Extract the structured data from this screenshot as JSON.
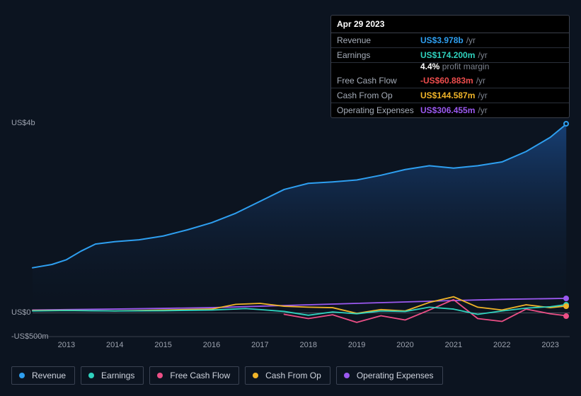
{
  "chart": {
    "type": "line",
    "background_color": "#0c1420",
    "plot_area_gradient_top": "rgba(20,60,110,0.9)",
    "plot_area_gradient_bottom": "rgba(10,20,40,0.1)",
    "axis_color": "#4a505c",
    "label_color": "#9ca2ae",
    "label_fontsize": 11,
    "y": {
      "min_value_usd": -500000000,
      "max_value_usd": 4000000000,
      "ticks": [
        {
          "label": "US$4b",
          "value": 4000000000
        },
        {
          "label": "US$0",
          "value": 0
        },
        {
          "label": "-US$500m",
          "value": -500000000
        }
      ]
    },
    "x": {
      "min_year": 2012.3,
      "max_year": 2023.4,
      "ticks": [
        {
          "label": "2013",
          "year": 2013
        },
        {
          "label": "2014",
          "year": 2014
        },
        {
          "label": "2015",
          "year": 2015
        },
        {
          "label": "2016",
          "year": 2016
        },
        {
          "label": "2017",
          "year": 2017
        },
        {
          "label": "2018",
          "year": 2018
        },
        {
          "label": "2019",
          "year": 2019
        },
        {
          "label": "2020",
          "year": 2020
        },
        {
          "label": "2021",
          "year": 2021
        },
        {
          "label": "2022",
          "year": 2022
        },
        {
          "label": "2023",
          "year": 2023
        }
      ]
    },
    "series": {
      "revenue": {
        "label": "Revenue",
        "color": "#2e9ff0",
        "width": 2,
        "area": true,
        "points": [
          [
            2012.3,
            950
          ],
          [
            2012.7,
            1020
          ],
          [
            2013.0,
            1120
          ],
          [
            2013.3,
            1300
          ],
          [
            2013.6,
            1450
          ],
          [
            2014.0,
            1500
          ],
          [
            2014.5,
            1540
          ],
          [
            2015.0,
            1620
          ],
          [
            2015.5,
            1750
          ],
          [
            2016.0,
            1900
          ],
          [
            2016.5,
            2100
          ],
          [
            2017.0,
            2350
          ],
          [
            2017.5,
            2600
          ],
          [
            2018.0,
            2730
          ],
          [
            2018.5,
            2760
          ],
          [
            2019.0,
            2800
          ],
          [
            2019.5,
            2900
          ],
          [
            2020.0,
            3020
          ],
          [
            2020.5,
            3100
          ],
          [
            2021.0,
            3050
          ],
          [
            2021.5,
            3100
          ],
          [
            2022.0,
            3180
          ],
          [
            2022.5,
            3400
          ],
          [
            2023.0,
            3700
          ],
          [
            2023.33,
            3978
          ]
        ]
      },
      "earnings": {
        "label": "Earnings",
        "color": "#2fd2be",
        "width": 1.8,
        "points": [
          [
            2012.3,
            40
          ],
          [
            2013,
            50
          ],
          [
            2014,
            40
          ],
          [
            2015,
            45
          ],
          [
            2016,
            60
          ],
          [
            2016.7,
            90
          ],
          [
            2017,
            70
          ],
          [
            2017.5,
            30
          ],
          [
            2018,
            -50
          ],
          [
            2018.5,
            20
          ],
          [
            2019,
            -20
          ],
          [
            2019.5,
            40
          ],
          [
            2020,
            30
          ],
          [
            2020.5,
            120
          ],
          [
            2021,
            80
          ],
          [
            2021.5,
            -30
          ],
          [
            2022,
            40
          ],
          [
            2022.5,
            100
          ],
          [
            2023,
            130
          ],
          [
            2023.33,
            174
          ]
        ]
      },
      "fcf": {
        "label": "Free Cash Flow",
        "color": "#ec4f86",
        "width": 1.8,
        "points": [
          [
            2017.5,
            -30
          ],
          [
            2018,
            -120
          ],
          [
            2018.5,
            -40
          ],
          [
            2019,
            -200
          ],
          [
            2019.5,
            -60
          ],
          [
            2020,
            -150
          ],
          [
            2020.5,
            60
          ],
          [
            2021,
            280
          ],
          [
            2021.5,
            -120
          ],
          [
            2022,
            -180
          ],
          [
            2022.5,
            80
          ],
          [
            2023,
            -20
          ],
          [
            2023.33,
            -61
          ]
        ]
      },
      "cfo": {
        "label": "Cash From Op",
        "color": "#f0b429",
        "width": 1.8,
        "points": [
          [
            2012.3,
            50
          ],
          [
            2013,
            55
          ],
          [
            2014,
            40
          ],
          [
            2015,
            60
          ],
          [
            2016,
            80
          ],
          [
            2016.5,
            180
          ],
          [
            2017,
            200
          ],
          [
            2017.5,
            140
          ],
          [
            2018,
            120
          ],
          [
            2018.5,
            110
          ],
          [
            2019,
            -10
          ],
          [
            2019.5,
            70
          ],
          [
            2020,
            40
          ],
          [
            2020.5,
            220
          ],
          [
            2021,
            340
          ],
          [
            2021.5,
            120
          ],
          [
            2022,
            60
          ],
          [
            2022.5,
            170
          ],
          [
            2023,
            110
          ],
          [
            2023.33,
            145
          ]
        ]
      },
      "opex": {
        "label": "Operating Expenses",
        "color": "#9b59f0",
        "width": 1.8,
        "points": [
          [
            2012.3,
            60
          ],
          [
            2013,
            70
          ],
          [
            2014,
            80
          ],
          [
            2015,
            95
          ],
          [
            2016,
            110
          ],
          [
            2017,
            140
          ],
          [
            2018,
            170
          ],
          [
            2019,
            200
          ],
          [
            2020,
            230
          ],
          [
            2021,
            260
          ],
          [
            2022,
            285
          ],
          [
            2023,
            300
          ],
          [
            2023.33,
            306
          ]
        ]
      }
    },
    "legend": [
      "revenue",
      "earnings",
      "fcf",
      "cfo",
      "opex"
    ]
  },
  "tooltip": {
    "date": "Apr 29 2023",
    "rows": [
      {
        "key": "revenue",
        "label": "Revenue",
        "value": "US$3.978b",
        "unit": "/yr"
      },
      {
        "key": "earnings",
        "label": "Earnings",
        "value": "US$174.200m",
        "unit": "/yr",
        "sub_pct": "4.4%",
        "sub_text": "profit margin"
      },
      {
        "key": "fcf",
        "label": "Free Cash Flow",
        "value": "-US$60.883m",
        "unit": "/yr",
        "value_color": "#ef4d4d"
      },
      {
        "key": "cfo",
        "label": "Cash From Op",
        "value": "US$144.587m",
        "unit": "/yr"
      },
      {
        "key": "opex",
        "label": "Operating Expenses",
        "value": "US$306.455m",
        "unit": "/yr"
      }
    ]
  }
}
